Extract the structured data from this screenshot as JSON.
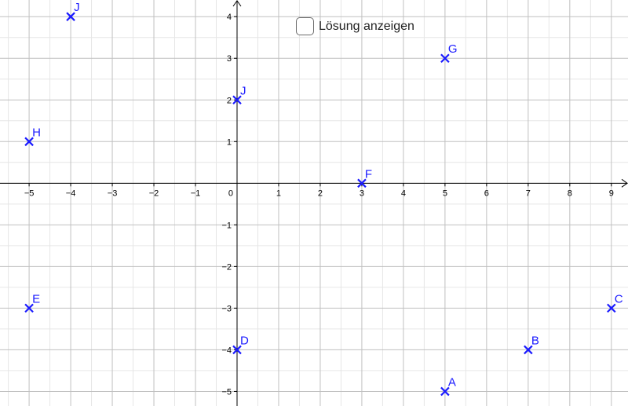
{
  "controls": {
    "solution_checkbox": {
      "label": "Lösung anzeigen",
      "checked": false
    }
  },
  "chart_data": {
    "type": "scatter",
    "xlim": [
      -5.7,
      9.4
    ],
    "ylim": [
      -5.35,
      4.4
    ],
    "grid": true,
    "x_ticks": [
      -5,
      -4,
      -3,
      -2,
      -1,
      0,
      1,
      2,
      3,
      4,
      5,
      6,
      7,
      8,
      9
    ],
    "y_ticks": [
      -5,
      -4,
      -3,
      -2,
      -1,
      1,
      2,
      3,
      4
    ],
    "x_tick_labels": [
      "−5",
      "−4",
      "−3",
      "−2",
      "−1",
      "0",
      "1",
      "2",
      "3",
      "4",
      "5",
      "6",
      "7",
      "8",
      "9"
    ],
    "y_tick_labels": [
      "−5",
      "−4",
      "−3",
      "−2",
      "−1",
      "1",
      "2",
      "3",
      "4"
    ],
    "point_color": "#1a1aff",
    "points": [
      {
        "label": "A",
        "x": 5,
        "y": -5
      },
      {
        "label": "B",
        "x": 7,
        "y": -4
      },
      {
        "label": "C",
        "x": 9,
        "y": -3
      },
      {
        "label": "D",
        "x": 0,
        "y": -4
      },
      {
        "label": "E",
        "x": -5,
        "y": -3
      },
      {
        "label": "F",
        "x": 3,
        "y": 0
      },
      {
        "label": "G",
        "x": 5,
        "y": 3
      },
      {
        "label": "H",
        "x": -5,
        "y": 1
      },
      {
        "label": "J",
        "x": 0,
        "y": 2
      },
      {
        "label": "J",
        "x": -4,
        "y": 4
      }
    ]
  }
}
